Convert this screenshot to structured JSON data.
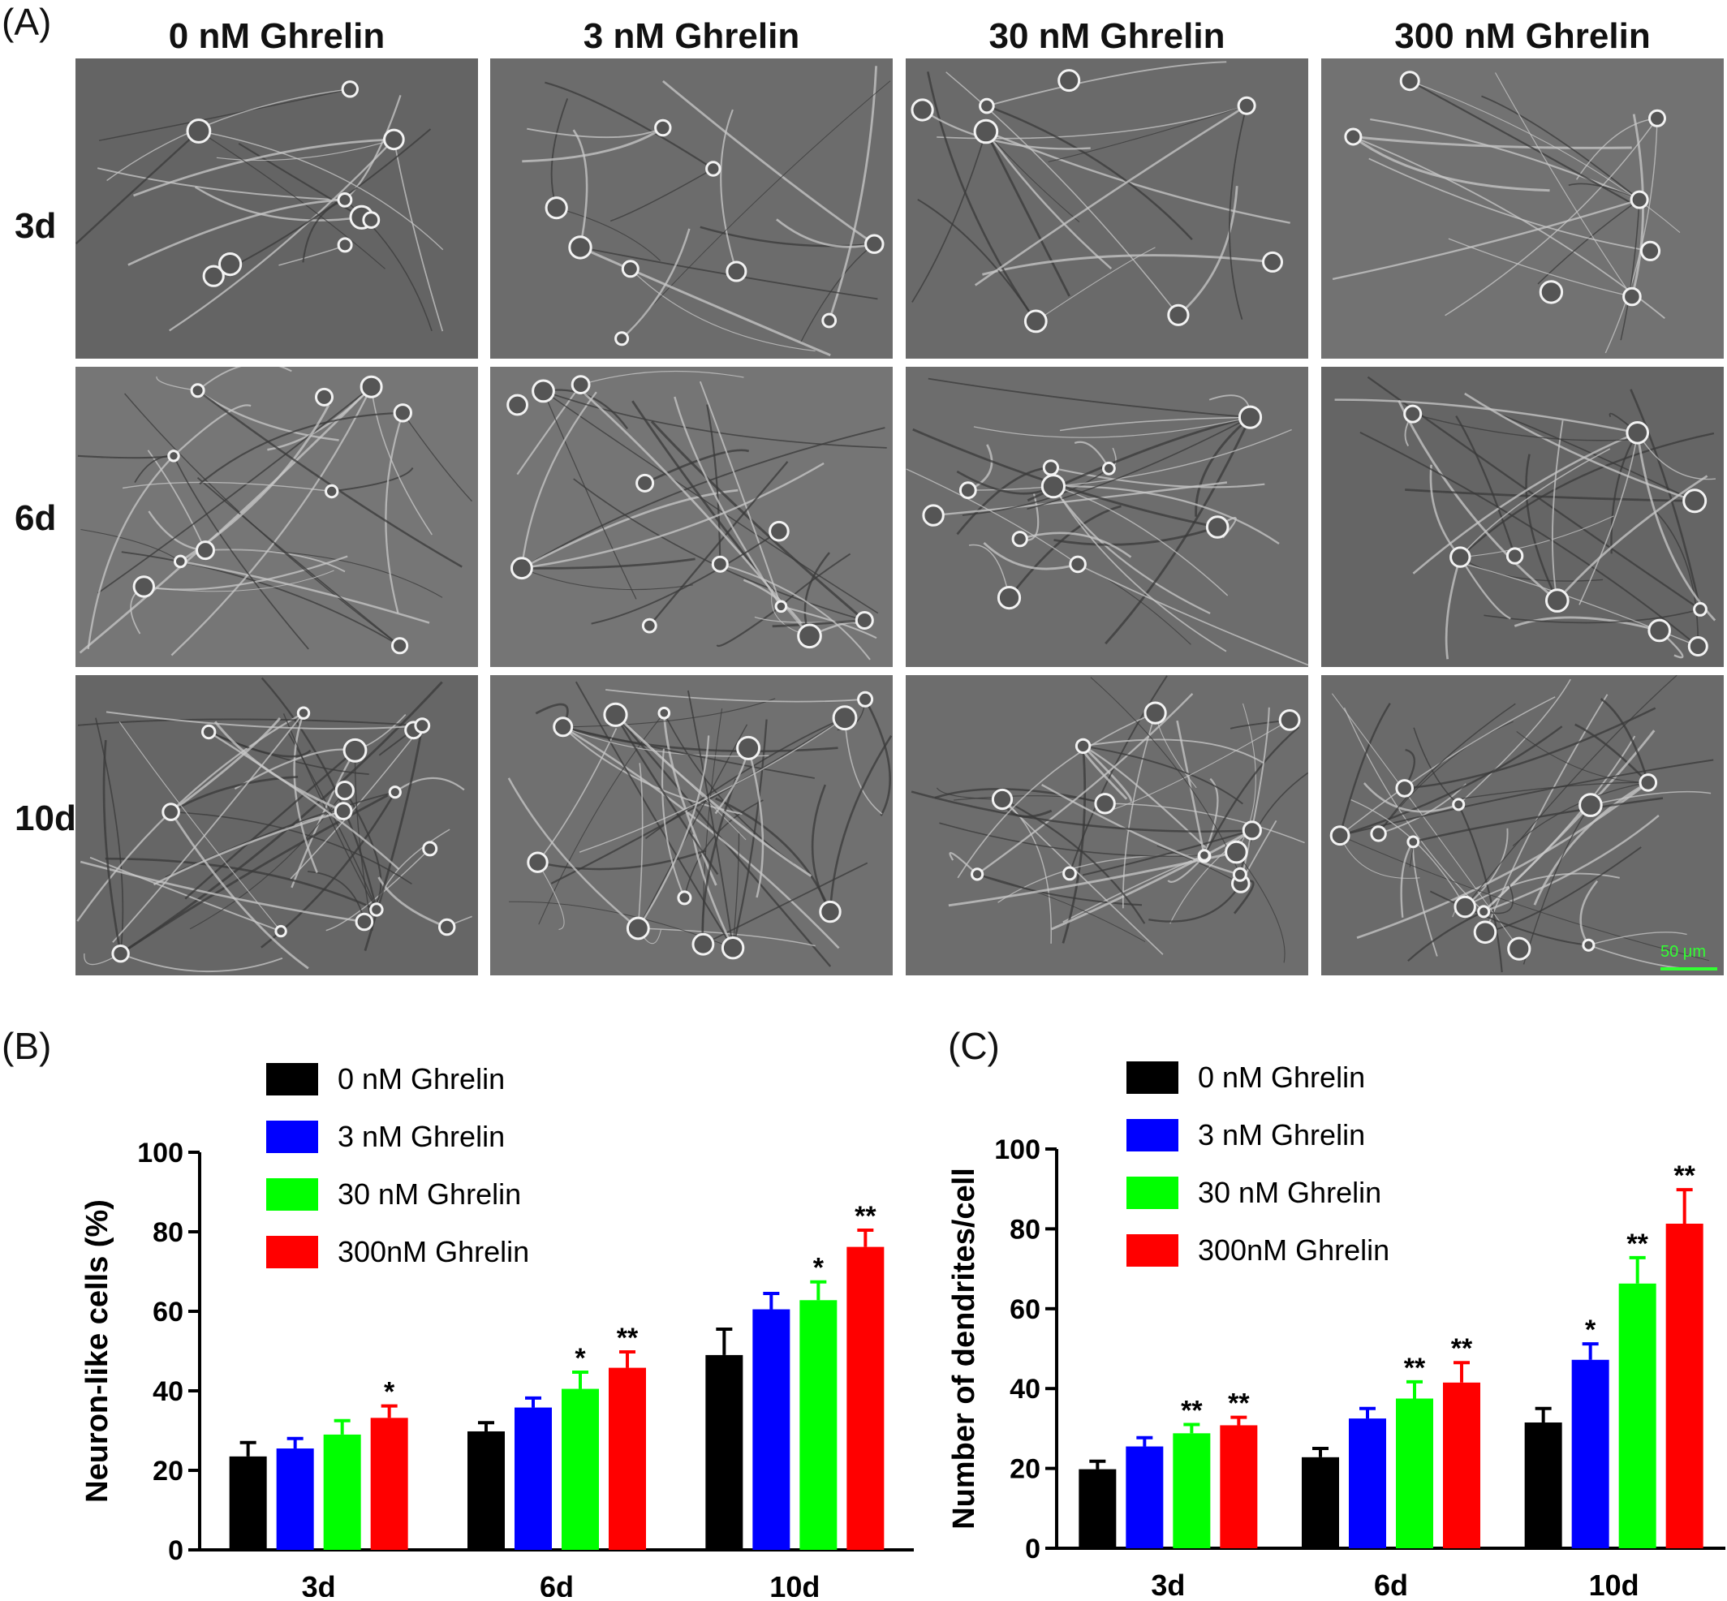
{
  "panel_labels": {
    "a": "(A)",
    "b": "(B)",
    "c": "(C)"
  },
  "columns": [
    "0 nM Ghrelin",
    "3 nM Ghrelin",
    "30 nM Ghrelin",
    "300 nM Ghrelin"
  ],
  "rows": [
    "3d",
    "6d",
    "10d"
  ],
  "scale_bar_label": "50 μm",
  "colors": {
    "black": "#000000",
    "blue": "#0000ff",
    "green": "#00ff00",
    "red": "#ff0000",
    "scale": "#33ff33"
  },
  "chart_data": [
    {
      "type": "bar",
      "ylabel": "Neuron-like cells (%)",
      "xlabel": "",
      "ylim": [
        0,
        100
      ],
      "yticks": [
        0,
        20,
        40,
        60,
        80,
        100
      ],
      "categories": [
        "3d",
        "6d",
        "10d"
      ],
      "legend_position": "top-left",
      "series": [
        {
          "name": "0 nM Ghrelin",
          "color": "#000000",
          "values": [
            23.5,
            29.8,
            49.0
          ],
          "errors": [
            3.5,
            2.2,
            6.5
          ],
          "sig": [
            "",
            "",
            ""
          ]
        },
        {
          "name": "3 nM Ghrelin",
          "color": "#0000ff",
          "values": [
            25.5,
            35.8,
            60.5
          ],
          "errors": [
            2.5,
            2.4,
            4.0
          ],
          "sig": [
            "",
            "",
            ""
          ]
        },
        {
          "name": "30 nM Ghrelin",
          "color": "#00ff00",
          "values": [
            29.0,
            40.5,
            62.8
          ],
          "errors": [
            3.5,
            4.2,
            4.6
          ],
          "sig": [
            "",
            "*",
            "*"
          ]
        },
        {
          "name": "300nM Ghrelin",
          "color": "#ff0000",
          "values": [
            33.2,
            45.8,
            76.2
          ],
          "errors": [
            3.0,
            4.0,
            4.2
          ],
          "sig": [
            "*",
            "**",
            "**"
          ]
        }
      ]
    },
    {
      "type": "bar",
      "ylabel": "Number of dendrites/cell",
      "xlabel": "",
      "ylim": [
        0,
        100
      ],
      "yticks": [
        0,
        20,
        40,
        60,
        80,
        100
      ],
      "categories": [
        "3d",
        "6d",
        "10d"
      ],
      "legend_position": "top-left",
      "series": [
        {
          "name": "0 nM Ghrelin",
          "color": "#000000",
          "values": [
            19.8,
            22.8,
            31.5
          ],
          "errors": [
            2.0,
            2.2,
            3.5
          ],
          "sig": [
            "",
            "",
            ""
          ]
        },
        {
          "name": "3 nM Ghrelin",
          "color": "#0000ff",
          "values": [
            25.5,
            32.5,
            47.2
          ],
          "errors": [
            2.2,
            2.5,
            4.0
          ],
          "sig": [
            "",
            "",
            "*"
          ]
        },
        {
          "name": "30 nM Ghrelin",
          "color": "#00ff00",
          "values": [
            28.8,
            37.5,
            66.3
          ],
          "errors": [
            2.2,
            4.2,
            6.5
          ],
          "sig": [
            "**",
            "**",
            "**"
          ]
        },
        {
          "name": "300nM Ghrelin",
          "color": "#ff0000",
          "values": [
            30.8,
            41.5,
            81.3
          ],
          "errors": [
            2.0,
            5.0,
            8.5
          ],
          "sig": [
            "**",
            "**",
            "**"
          ]
        }
      ]
    }
  ]
}
